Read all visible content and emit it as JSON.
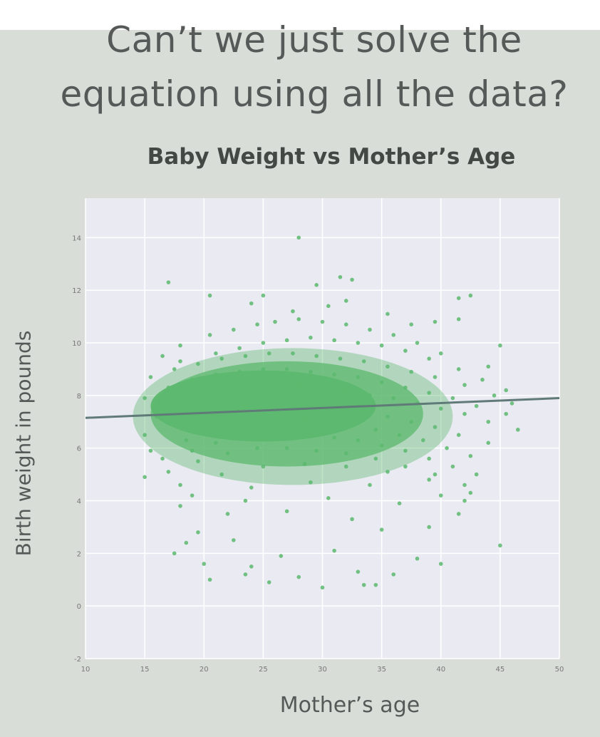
{
  "slide": {
    "title": "Can’t we just solve the\nequation using all the data?"
  },
  "colors": {
    "background": "#d8ddd8",
    "plot_background": "#eaeaf2",
    "grid": "#ffffff",
    "points": "#5cb86e",
    "fit_line": "#607a78"
  },
  "chart_data": {
    "type": "scatter",
    "title": "Baby Weight vs Mother’s Age",
    "xlabel": "Mother’s age",
    "ylabel": "Birth weight in pounds",
    "xlim": [
      10,
      50
    ],
    "ylim": [
      -2,
      15.5
    ],
    "x_ticks": [
      10,
      15,
      20,
      25,
      30,
      35,
      40,
      45,
      50
    ],
    "y_ticks": [
      -2,
      0,
      2,
      4,
      6,
      8,
      10,
      12,
      14
    ],
    "grid": true,
    "series": [
      {
        "x": [
          28.0,
          17.0,
          31.5,
          32.5,
          20.5,
          25.0,
          29.5,
          42.5,
          41.5,
          32.0,
          24.0,
          35.5,
          41.5,
          30.5,
          27.5,
          37.5,
          39.5,
          45.0,
          44.0,
          16.5,
          18.0,
          20.5,
          22.5,
          24.5,
          26.0,
          28.0,
          30.0,
          32.0,
          34.0,
          36.0,
          38.0,
          40.0,
          18.0,
          21.0,
          23.0,
          25.0,
          27.0,
          29.0,
          31.0,
          33.0,
          35.0,
          37.0,
          39.0,
          41.5,
          43.5,
          45.5,
          15.5,
          17.5,
          19.5,
          21.5,
          23.5,
          25.5,
          27.5,
          29.5,
          31.5,
          33.5,
          35.5,
          37.5,
          39.5,
          42.0,
          44.5,
          46.0,
          15.0,
          17.0,
          19.0,
          21.0,
          23.0,
          25.0,
          27.0,
          29.0,
          31.0,
          33.0,
          35.0,
          37.0,
          39.0,
          41.0,
          43.0,
          45.5,
          16.0,
          18.0,
          20.0,
          22.0,
          24.0,
          26.0,
          28.0,
          30.0,
          32.0,
          34.0,
          36.0,
          38.0,
          40.0,
          42.0,
          44.0,
          46.5,
          15.0,
          17.5,
          19.5,
          21.5,
          23.5,
          25.5,
          27.5,
          29.5,
          31.5,
          33.5,
          35.5,
          37.5,
          39.5,
          41.5,
          44.0,
          15.5,
          18.5,
          20.5,
          22.5,
          24.5,
          26.5,
          28.5,
          30.5,
          32.5,
          34.5,
          36.5,
          38.5,
          40.5,
          42.5,
          16.5,
          19.0,
          21.0,
          23.0,
          25.0,
          27.0,
          29.0,
          31.0,
          33.0,
          35.0,
          37.0,
          39.0,
          41.0,
          43.0,
          17.0,
          19.5,
          22.0,
          24.5,
          27.0,
          29.5,
          32.0,
          34.5,
          37.0,
          39.5,
          42.0,
          18.0,
          21.5,
          25.0,
          28.5,
          32.0,
          35.5,
          39.0,
          42.5,
          19.0,
          24.0,
          29.0,
          34.0,
          40.0,
          18.0,
          23.5,
          30.5,
          36.5,
          41.5,
          15.0,
          22.0,
          27.0,
          32.5,
          39.0,
          42.0,
          19.5,
          22.5,
          35.0,
          45.0,
          18.5,
          26.5,
          31.0,
          38.0,
          17.5,
          24.0,
          33.0,
          40.0,
          20.0,
          28.0,
          36.0,
          20.5,
          25.5,
          30.0,
          34.5,
          23.5,
          33.5
        ],
        "y": [
          14.0,
          12.3,
          12.5,
          12.4,
          11.8,
          11.8,
          12.2,
          11.8,
          11.7,
          11.6,
          11.5,
          11.1,
          10.9,
          11.4,
          11.2,
          10.7,
          10.8,
          9.9,
          9.1,
          9.5,
          9.9,
          10.3,
          10.5,
          10.7,
          10.8,
          10.9,
          10.8,
          10.7,
          10.5,
          10.3,
          10.0,
          9.6,
          9.3,
          9.6,
          9.8,
          10.0,
          10.1,
          10.2,
          10.1,
          10.0,
          9.9,
          9.7,
          9.4,
          9.0,
          8.6,
          8.2,
          8.7,
          9.0,
          9.2,
          9.4,
          9.5,
          9.6,
          9.6,
          9.5,
          9.4,
          9.3,
          9.1,
          8.9,
          8.7,
          8.4,
          8.0,
          7.7,
          7.9,
          8.3,
          8.6,
          8.8,
          8.9,
          9.0,
          9.0,
          8.9,
          8.8,
          8.7,
          8.5,
          8.3,
          8.1,
          7.9,
          7.6,
          7.3,
          7.2,
          7.6,
          7.9,
          8.1,
          8.3,
          8.4,
          8.4,
          8.3,
          8.2,
          8.0,
          7.9,
          7.7,
          7.5,
          7.3,
          7.0,
          6.7,
          6.5,
          6.9,
          7.2,
          7.4,
          7.6,
          7.7,
          7.7,
          7.6,
          7.5,
          7.4,
          7.2,
          7.0,
          6.8,
          6.5,
          6.2,
          5.9,
          6.3,
          6.6,
          6.8,
          7.0,
          7.1,
          7.1,
          7.0,
          6.9,
          6.7,
          6.5,
          6.3,
          6.0,
          5.7,
          5.6,
          5.9,
          6.2,
          6.4,
          6.5,
          6.6,
          6.5,
          6.4,
          6.3,
          6.1,
          5.9,
          5.6,
          5.3,
          5.0,
          5.1,
          5.5,
          5.8,
          6.0,
          6.0,
          5.9,
          5.8,
          5.6,
          5.3,
          5.0,
          4.6,
          4.6,
          5.0,
          5.3,
          5.4,
          5.3,
          5.1,
          4.8,
          4.3,
          4.2,
          4.5,
          4.7,
          4.6,
          4.2,
          3.8,
          4.0,
          4.1,
          3.9,
          3.5,
          4.9,
          3.5,
          3.6,
          3.3,
          3.0,
          4.0,
          2.8,
          2.5,
          2.9,
          2.3,
          2.4,
          1.9,
          2.1,
          1.8,
          2.0,
          1.5,
          1.3,
          1.6,
          1.6,
          1.1,
          1.2,
          1.0,
          0.9,
          0.7,
          0.8,
          1.2,
          0.8
        ],
        "density_clusters": [
          {
            "cx": 25.0,
            "cy": 7.6,
            "rx": 9.5,
            "ry": 1.35,
            "opacity": 0.95
          },
          {
            "cx": 27.0,
            "cy": 7.3,
            "rx": 11.5,
            "ry": 2.0,
            "opacity": 0.75
          },
          {
            "cx": 27.5,
            "cy": 7.2,
            "rx": 13.5,
            "ry": 2.6,
            "opacity": 0.4
          }
        ]
      }
    ],
    "fit_line": {
      "x": [
        10,
        50
      ],
      "y": [
        7.15,
        7.9
      ]
    }
  }
}
